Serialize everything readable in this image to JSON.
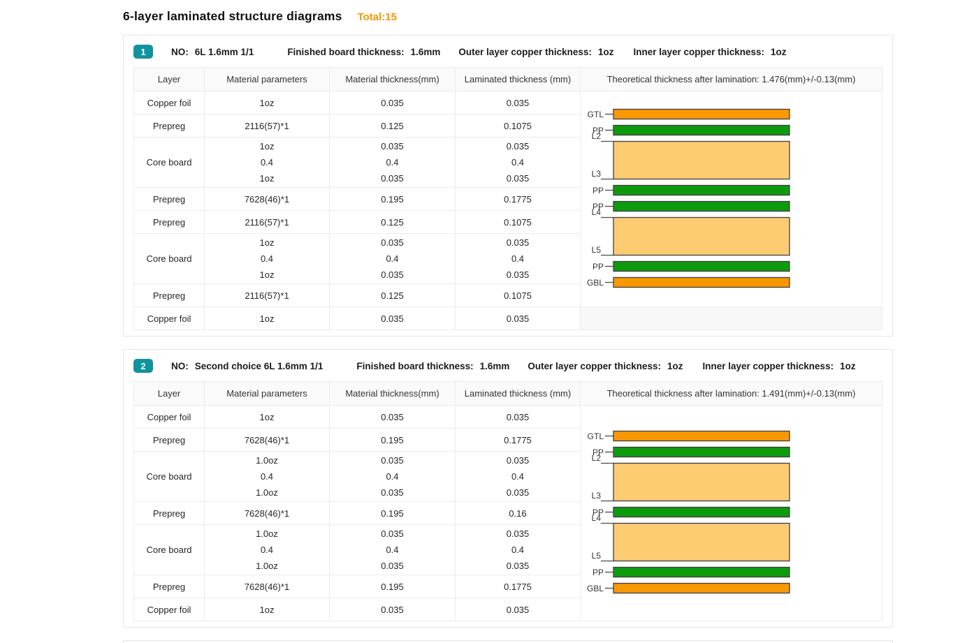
{
  "page": {
    "title": "6-layer laminated structure diagrams",
    "total_label": "Total:15"
  },
  "table_headers": [
    "Layer",
    "Material parameters",
    "Material thickness(mm)",
    "Laminated thickness (mm)"
  ],
  "colors": {
    "accent_orange": "#fb9300",
    "badge_teal": "#0f939e",
    "bar_orange": "#fa9801",
    "bar_green": "#0d9b0d",
    "bar_tan": "#fdcb72",
    "bar_stroke": "#3f3f3f",
    "diagram_line": "#4a4a4a",
    "diagram_label": "#333333"
  },
  "cards": [
    {
      "index": "1",
      "no_label": "NO:",
      "no_value": "6L 1.6mm 1/1",
      "finished_label": "Finished board thickness:",
      "finished_value": "1.6mm",
      "outer_label": "Outer layer copper thickness:",
      "outer_value": "1oz",
      "inner_label": "Inner layer copper thickness:",
      "inner_value": "1oz",
      "diagram_header": "Theoretical thickness after lamination: 1.476(mm)+/-0.13(mm)",
      "rows": [
        {
          "layer": "Copper foil",
          "params": [
            "1oz"
          ],
          "material": [
            "0.035"
          ],
          "laminated": [
            "0.035"
          ]
        },
        {
          "layer": "Prepreg",
          "params": [
            "2116(57)*1"
          ],
          "material": [
            "0.125"
          ],
          "laminated": [
            "0.1075"
          ]
        },
        {
          "layer": "Core board",
          "params": [
            "1oz",
            "0.4",
            "1oz"
          ],
          "material": [
            "0.035",
            "0.4",
            "0.035"
          ],
          "laminated": [
            "0.035",
            "0.4",
            "0.035"
          ]
        },
        {
          "layer": "Prepreg",
          "params": [
            "7628(46)*1"
          ],
          "material": [
            "0.195"
          ],
          "laminated": [
            "0.1775"
          ]
        },
        {
          "layer": "Prepreg",
          "params": [
            "2116(57)*1"
          ],
          "material": [
            "0.125"
          ],
          "laminated": [
            "0.1075"
          ]
        },
        {
          "layer": "Core board",
          "params": [
            "1oz",
            "0.4",
            "1oz"
          ],
          "material": [
            "0.035",
            "0.4",
            "0.035"
          ],
          "laminated": [
            "0.035",
            "0.4",
            "0.035"
          ]
        },
        {
          "layer": "Prepreg",
          "params": [
            "2116(57)*1"
          ],
          "material": [
            "0.125"
          ],
          "laminated": [
            "0.1075"
          ]
        },
        {
          "layer": "Copper foil",
          "params": [
            "1oz"
          ],
          "material": [
            "0.035"
          ],
          "laminated": [
            "0.035"
          ]
        }
      ],
      "diagram": {
        "rowspan": 7,
        "trailing_empty": true,
        "layers": [
          {
            "type": "bar",
            "color": "orange",
            "label": "GTL"
          },
          {
            "type": "bar",
            "color": "green",
            "label": "PP"
          },
          {
            "type": "block",
            "top_label": "L2",
            "bottom_label": "L3"
          },
          {
            "type": "bar",
            "color": "green",
            "label": "PP"
          },
          {
            "type": "bar",
            "color": "green",
            "label": "PP"
          },
          {
            "type": "block",
            "top_label": "L4",
            "bottom_label": "L5"
          },
          {
            "type": "bar",
            "color": "green",
            "label": "PP"
          },
          {
            "type": "bar",
            "color": "orange",
            "label": "GBL"
          }
        ]
      }
    },
    {
      "index": "2",
      "no_label": "NO:",
      "no_value": "Second choice 6L 1.6mm 1/1",
      "finished_label": "Finished board thickness:",
      "finished_value": "1.6mm",
      "outer_label": "Outer layer copper thickness:",
      "outer_value": "1oz",
      "inner_label": "Inner layer copper thickness:",
      "inner_value": "1oz",
      "diagram_header": "Theoretical thickness after lamination: 1.491(mm)+/-0.13(mm)",
      "rows": [
        {
          "layer": "Copper foil",
          "params": [
            "1oz"
          ],
          "material": [
            "0.035"
          ],
          "laminated": [
            "0.035"
          ]
        },
        {
          "layer": "Prepreg",
          "params": [
            "7628(46)*1"
          ],
          "material": [
            "0.195"
          ],
          "laminated": [
            "0.1775"
          ]
        },
        {
          "layer": "Core board",
          "params": [
            "1.0oz",
            "0.4",
            "1.0oz"
          ],
          "material": [
            "0.035",
            "0.4",
            "0.035"
          ],
          "laminated": [
            "0.035",
            "0.4",
            "0.035"
          ]
        },
        {
          "layer": "Prepreg",
          "params": [
            "7628(46)*1"
          ],
          "material": [
            "0.195"
          ],
          "laminated": [
            "0.16"
          ]
        },
        {
          "layer": "Core board",
          "params": [
            "1.0oz",
            "0.4",
            "1.0oz"
          ],
          "material": [
            "0.035",
            "0.4",
            "0.035"
          ],
          "laminated": [
            "0.035",
            "0.4",
            "0.035"
          ]
        },
        {
          "layer": "Prepreg",
          "params": [
            "7628(46)*1"
          ],
          "material": [
            "0.195"
          ],
          "laminated": [
            "0.1775"
          ]
        },
        {
          "layer": "Copper foil",
          "params": [
            "1oz"
          ],
          "material": [
            "0.035"
          ],
          "laminated": [
            "0.035"
          ]
        }
      ],
      "diagram": {
        "rowspan": 7,
        "trailing_empty": false,
        "layers": [
          {
            "type": "bar",
            "color": "orange",
            "label": "GTL"
          },
          {
            "type": "bar",
            "color": "green",
            "label": "PP"
          },
          {
            "type": "block",
            "top_label": "L2",
            "bottom_label": "L3"
          },
          {
            "type": "bar",
            "color": "green",
            "label": "PP"
          },
          {
            "type": "block",
            "top_label": "L4",
            "bottom_label": "L5"
          },
          {
            "type": "bar",
            "color": "green",
            "label": "PP"
          },
          {
            "type": "bar",
            "color": "orange",
            "label": "GBL"
          }
        ]
      }
    }
  ]
}
